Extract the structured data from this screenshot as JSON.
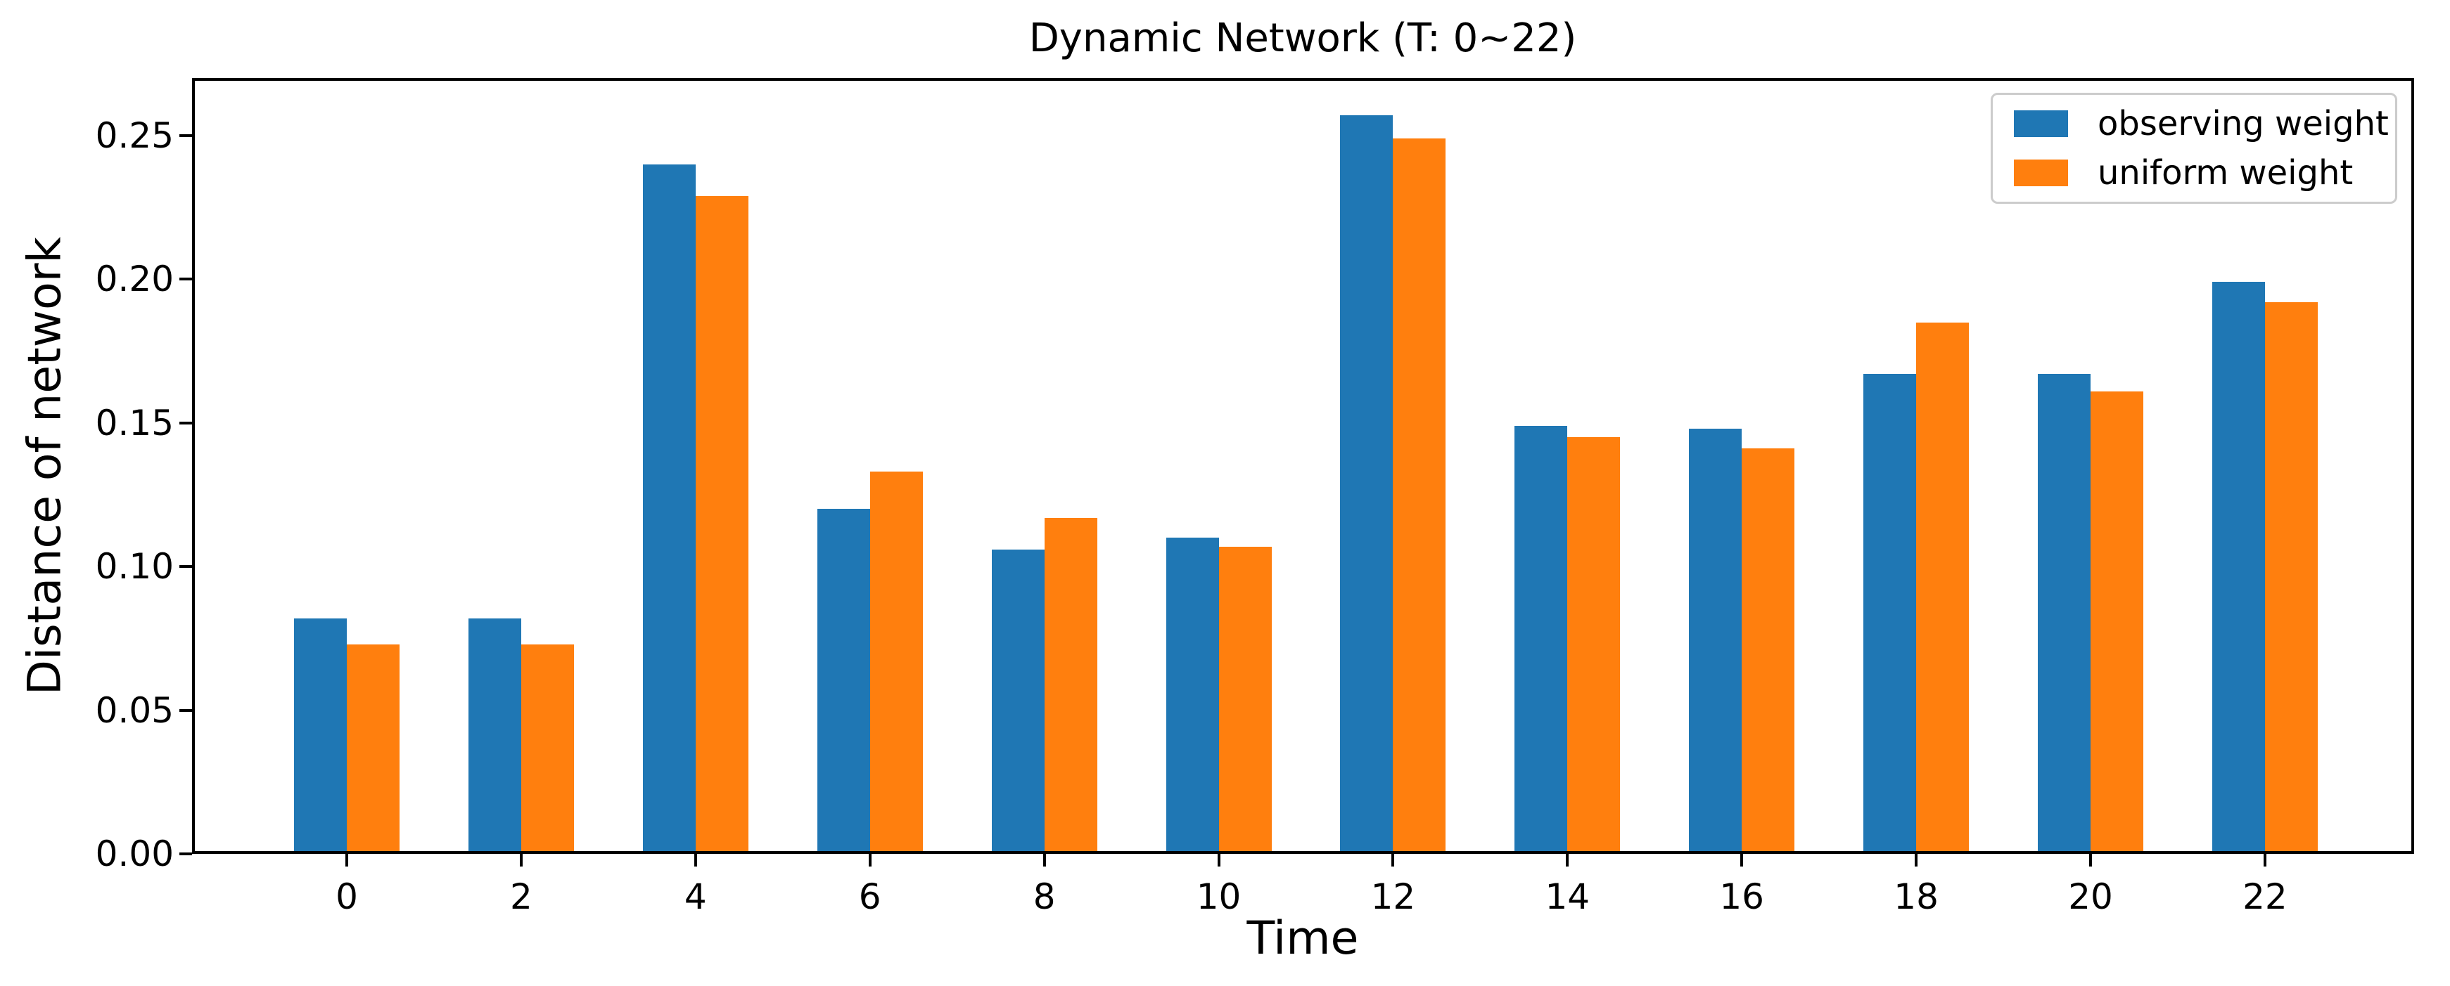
{
  "chart_data": {
    "type": "bar",
    "title": "Dynamic Network (T: 0~22)",
    "xlabel": "Time",
    "ylabel": "Distance of network",
    "categories": [
      0,
      2,
      4,
      6,
      8,
      10,
      12,
      14,
      16,
      18,
      20,
      22
    ],
    "series": [
      {
        "name": "observing weight",
        "color": "#1f77b4",
        "values": [
          0.082,
          0.082,
          0.24,
          0.12,
          0.106,
          0.11,
          0.257,
          0.149,
          0.148,
          0.167,
          0.167,
          0.199
        ]
      },
      {
        "name": "uniform weight",
        "color": "#ff7f0e",
        "values": [
          0.073,
          0.073,
          0.229,
          0.133,
          0.117,
          0.107,
          0.249,
          0.145,
          0.141,
          0.185,
          0.161,
          0.192
        ]
      }
    ],
    "ylim": [
      0,
      0.27
    ],
    "yticks": [
      0.0,
      0.05,
      0.1,
      0.15,
      0.2,
      0.25
    ],
    "ytick_labels": [
      "0.00",
      "0.05",
      "0.10",
      "0.15",
      "0.20",
      "0.25"
    ],
    "xtick_labels": [
      "0",
      "2",
      "4",
      "6",
      "8",
      "10",
      "12",
      "14",
      "16",
      "18",
      "20",
      "22"
    ],
    "grid": false,
    "legend_position": "upper right",
    "legend_entries": [
      "observing weight",
      "uniform weight"
    ]
  }
}
